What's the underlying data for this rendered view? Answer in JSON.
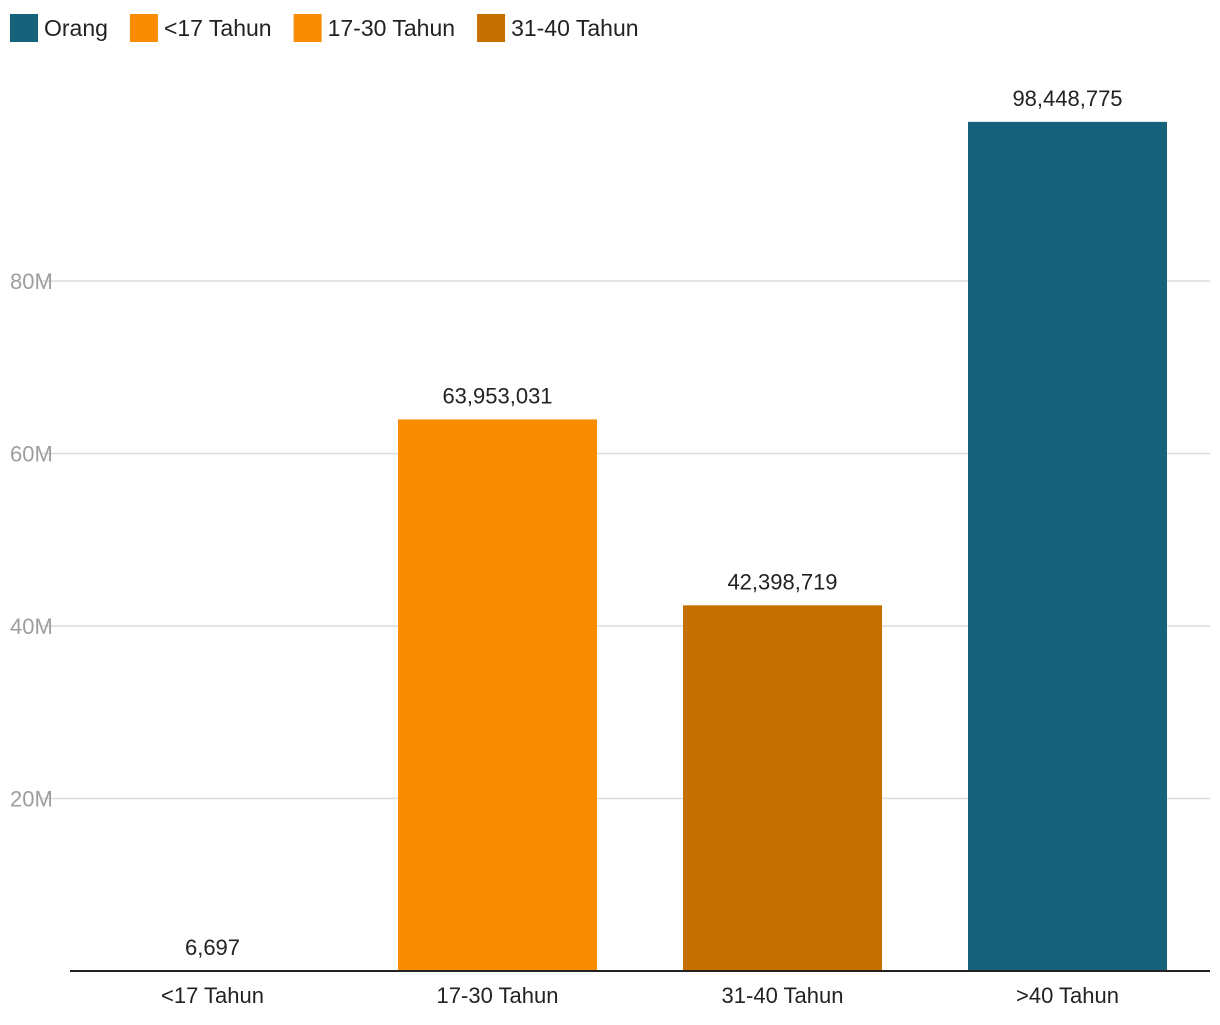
{
  "chart_data": {
    "type": "bar",
    "categories": [
      "<17 Tahun",
      "17-30 Tahun",
      "31-40 Tahun",
      ">40 Tahun"
    ],
    "values": [
      6697,
      63953031,
      42398719,
      98448775
    ],
    "value_labels": [
      "6,697",
      "63,953,031",
      "42,398,719",
      "98,448,775"
    ],
    "bar_colors": [
      "#f98c00",
      "#f98c00",
      "#c57000",
      "#17627b"
    ],
    "legend": [
      {
        "label": "Orang",
        "color": "#17627b"
      },
      {
        "label": "<17 Tahun",
        "color": "#f98c00"
      },
      {
        "label": "17-30 Tahun",
        "color": "#f98c00"
      },
      {
        "label": "31-40 Tahun",
        "color": "#c57000"
      }
    ],
    "legend_position": "top-left",
    "y_ticks": [
      20000000,
      40000000,
      60000000,
      80000000
    ],
    "y_tick_labels": [
      "20M",
      "40M",
      "60M",
      "80M"
    ],
    "ylim": [
      0,
      110000000
    ],
    "grid": true,
    "title": "",
    "xlabel": "",
    "ylabel": ""
  }
}
